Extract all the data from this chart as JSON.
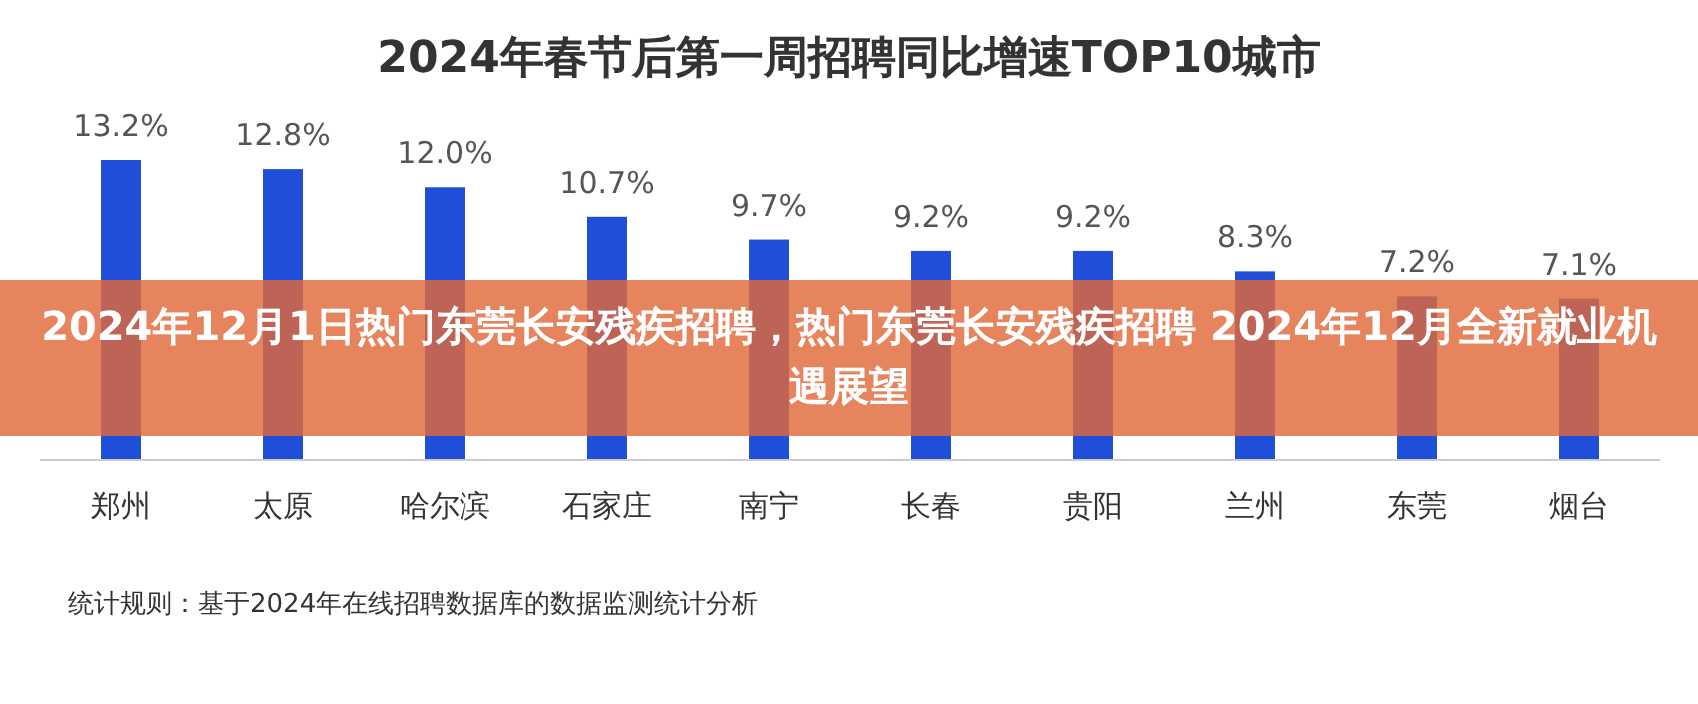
{
  "chart_data": {
    "type": "bar",
    "title": "2024年春节后第一周招聘同比增速TOP10城市",
    "categories": [
      "郑州",
      "太原",
      "哈尔滨",
      "石家庄",
      "南宁",
      "长春",
      "贵阳",
      "兰州",
      "东莞",
      "烟台"
    ],
    "values": [
      13.2,
      12.8,
      12.0,
      10.7,
      9.7,
      9.2,
      9.2,
      8.3,
      7.2,
      7.1
    ],
    "value_labels": [
      "13.2%",
      "12.8%",
      "12.0%",
      "10.7%",
      "9.7%",
      "9.2%",
      "9.2%",
      "8.3%",
      "7.2%",
      "7.1%"
    ],
    "color": "#1f4fd8",
    "annotations": [
      "2024年12月1日热门东莞长安残疾招聘，热门东莞长安残疾招聘 2024年12月全新就业机遇展望",
      "统计规则：基于2024年在线招聘数据库的数据监测统计分析"
    ]
  }
}
